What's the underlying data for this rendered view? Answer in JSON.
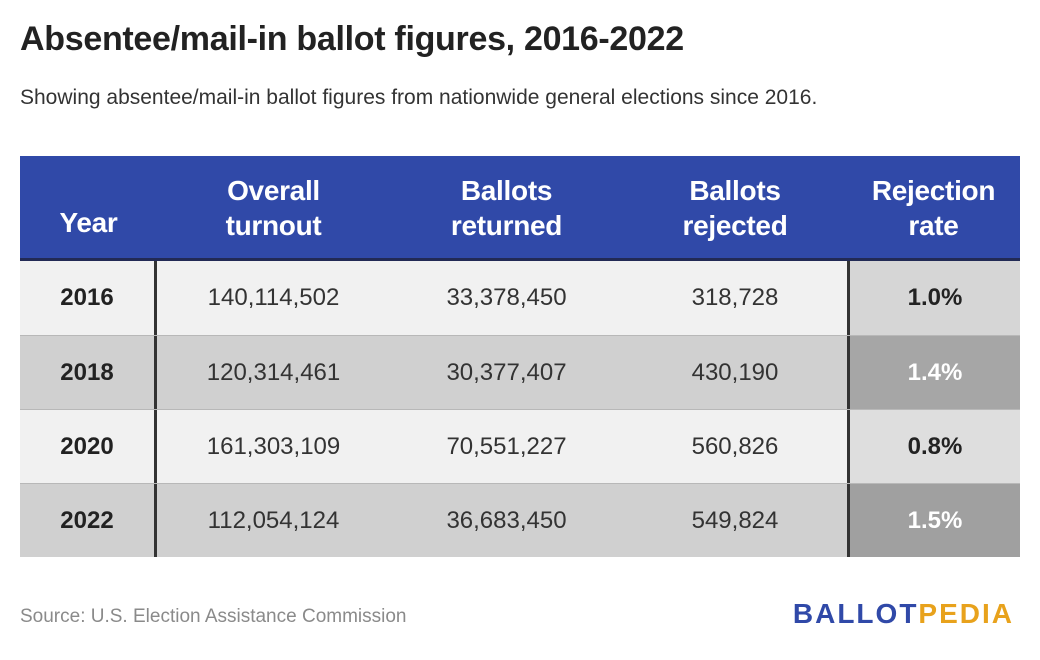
{
  "title": "Absentee/mail-in ballot figures, 2016-2022",
  "subtitle": "Showing absentee/mail-in ballot figures from nationwide general elections since 2016.",
  "source": "Source: U.S. Election Assistance Commission",
  "logo": {
    "text": "BALLOTPEDIA",
    "part1": "BALLOT",
    "part2": "PEDIA",
    "colors": {
      "ballot": "#3049a8",
      "pedia": "#e8a21c"
    }
  },
  "colors": {
    "header_bg": "#3049a8",
    "row_light": "#f1f1f1",
    "row_dark": "#d0d0d0"
  },
  "chart_data": {
    "type": "table",
    "title": "Absentee/mail-in ballot figures, 2016-2022",
    "subtitle": "Showing absentee/mail-in ballot figures from nationwide general elections since 2016.",
    "columns": [
      {
        "line1": "",
        "line2": "Year"
      },
      {
        "line1": "Overall",
        "line2": "turnout"
      },
      {
        "line1": "Ballots",
        "line2": "returned"
      },
      {
        "line1": "Ballots",
        "line2": "rejected"
      },
      {
        "line1": "Rejection",
        "line2": "rate"
      }
    ],
    "rows": [
      {
        "year": "2016",
        "overall_turnout": "140,114,502",
        "ballots_returned": "33,378,450",
        "ballots_rejected": "318,728",
        "rejection_rate": "1.0%",
        "rate_value": 1.0
      },
      {
        "year": "2018",
        "overall_turnout": "120,314,461",
        "ballots_returned": "30,377,407",
        "ballots_rejected": "430,190",
        "rejection_rate": "1.4%",
        "rate_value": 1.4
      },
      {
        "year": "2020",
        "overall_turnout": "161,303,109",
        "ballots_returned": "70,551,227",
        "ballots_rejected": "560,826",
        "rejection_rate": "0.8%",
        "rate_value": 0.8
      },
      {
        "year": "2022",
        "overall_turnout": "112,054,124",
        "ballots_returned": "36,683,450",
        "ballots_rejected": "549,824",
        "rejection_rate": "1.5%",
        "rate_value": 1.5
      }
    ],
    "rate_cell_colors": [
      "#d6d6d6",
      "#a6a6a6",
      "#dedede",
      "#a0a0a0"
    ],
    "rate_text_colors": [
      "#222222",
      "#ffffff",
      "#222222",
      "#ffffff"
    ]
  }
}
